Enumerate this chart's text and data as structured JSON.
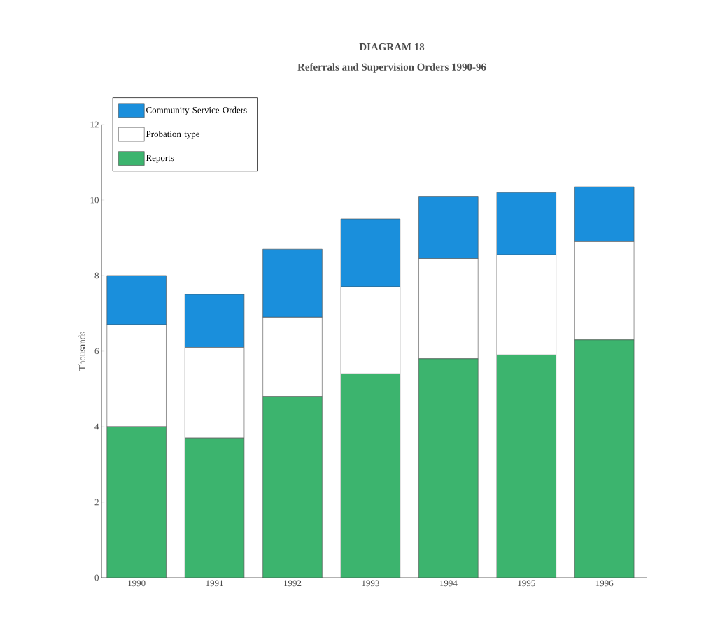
{
  "chart_data": {
    "type": "bar",
    "title": "DIAGRAM 18",
    "subtitle": "Referrals and Supervision Orders 1990-96",
    "ylabel": "Thousands",
    "categories": [
      "1990",
      "1991",
      "1992",
      "1993",
      "1994",
      "1995",
      "1996"
    ],
    "stacked": true,
    "series": [
      {
        "name": "Reports",
        "color": "#3cb46e",
        "values": [
          4.0,
          3.7,
          4.8,
          5.4,
          5.8,
          5.9,
          6.3
        ]
      },
      {
        "name": "Probation type",
        "color": "#ffffff",
        "values": [
          2.7,
          2.4,
          2.1,
          2.3,
          2.65,
          2.65,
          2.6
        ]
      },
      {
        "name": "Community Service Orders",
        "color": "#1a8fdc",
        "values": [
          1.3,
          1.4,
          1.8,
          1.8,
          1.65,
          1.65,
          1.45
        ]
      }
    ],
    "ylim": [
      0,
      12
    ],
    "yticks": [
      0,
      2,
      4,
      6,
      8,
      10,
      12
    ],
    "legend": "top left"
  }
}
